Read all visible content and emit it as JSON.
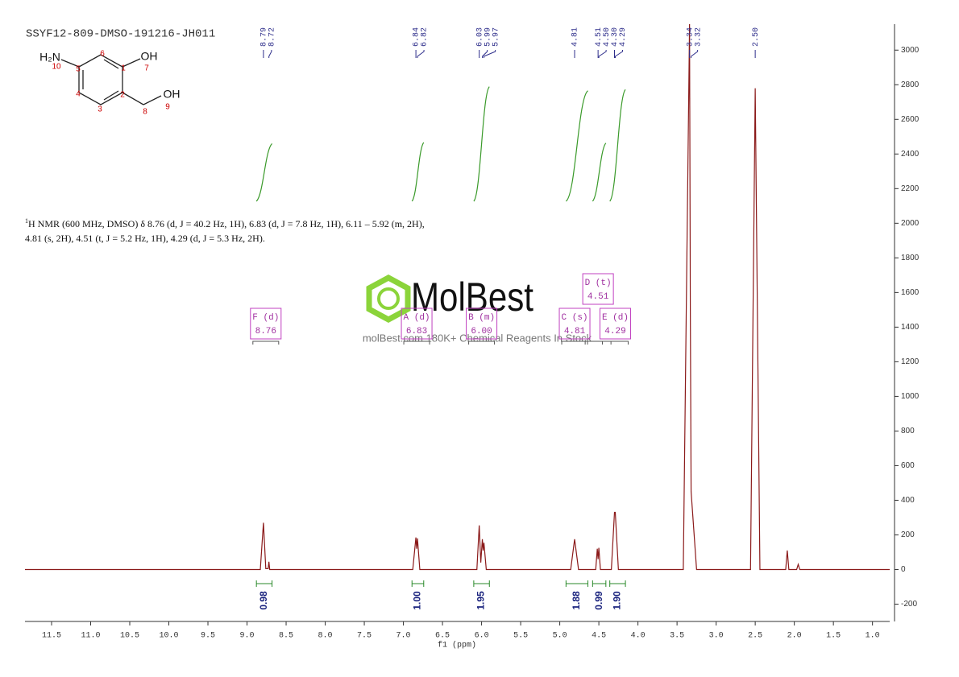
{
  "chart_data": {
    "type": "line",
    "title": "SSYF12-809-DMSO-191216-JH011",
    "xlabel": "f1 (ppm)",
    "x": [
      11.84,
      8.83,
      8.79,
      8.76,
      8.73,
      8.72,
      8.71,
      6.88,
      6.84,
      6.83,
      6.82,
      6.79,
      6.06,
      6.03,
      6.01,
      5.99,
      5.98,
      5.97,
      5.94,
      4.86,
      4.81,
      4.76,
      4.54,
      4.52,
      4.51,
      4.5,
      4.48,
      4.34,
      4.3,
      4.29,
      4.25,
      3.42,
      3.34,
      3.33,
      3.32,
      3.25,
      2.56,
      2.5,
      2.44,
      2.11,
      2.09,
      2.07,
      1.97,
      1.95,
      1.93,
      0.78
    ],
    "values": [
      0,
      0,
      270,
      5,
      5,
      45,
      0,
      0,
      185,
      120,
      180,
      0,
      0,
      255,
      40,
      175,
      110,
      155,
      0,
      0,
      175,
      0,
      0,
      120,
      60,
      125,
      0,
      0,
      330,
      330,
      0,
      0,
      3150,
      1500,
      450,
      0,
      0,
      2780,
      0,
      0,
      110,
      0,
      0,
      30,
      0,
      0
    ],
    "color": "#8b1a1a",
    "xlim": [
      11.84,
      0.78
    ],
    "xticks": [
      11.5,
      {
        "value": 11,
        "label": "11.0"
      },
      10.5,
      {
        "value": 10,
        "label": "10.0"
      },
      9.5,
      {
        "value": 9,
        "label": "9.0"
      },
      8.5,
      {
        "value": 8,
        "label": "8.0"
      },
      7.5,
      {
        "value": 7,
        "label": "7.0"
      },
      6.5,
      {
        "value": 6,
        "label": "6.0"
      },
      5.5,
      {
        "value": 5,
        "label": "5.0"
      },
      4.5,
      {
        "value": 4,
        "label": "4.0"
      },
      3.5,
      {
        "value": 3,
        "label": "3.0"
      },
      2.5,
      {
        "value": 2,
        "label": "2.0"
      },
      1.5,
      {
        "value": 1,
        "label": "1.0"
      }
    ],
    "ylim": [
      -300,
      3150
    ],
    "yticks": [
      -200,
      0,
      200,
      400,
      600,
      800,
      1000,
      1200,
      1400,
      1600,
      1800,
      2000,
      2200,
      2400,
      2600,
      2800,
      3000
    ],
    "peak_labels": {
      "values": [
        8.79,
        8.72,
        6.84,
        6.82,
        6.03,
        5.99,
        5.97,
        4.81,
        4.51,
        4.5,
        4.3,
        4.29,
        3.34,
        3.32,
        2.5
      ],
      "value_labels": [
        "8.79",
        "8.72",
        "6.84",
        "6.82",
        "6.03",
        "5.99",
        "5.97",
        "4.81",
        "4.51",
        "4.50",
        "4.30",
        "4.29",
        "3.34",
        "3.32",
        "2.50"
      ]
    },
    "multiplets": {
      "names": [
        "F (d)",
        "A (d)",
        "B (m)",
        "C (s)",
        "D (t)",
        "E (d)"
      ],
      "shifts": [
        8.76,
        6.83,
        6,
        4.81,
        4.51,
        4.29
      ],
      "shift_labels": [
        "8.76",
        "6.83",
        "6.00",
        "4.81",
        "4.51",
        "4.29"
      ]
    },
    "integrals": {
      "ranges": [
        [
          8.88,
          8.68
        ],
        [
          6.89,
          6.74
        ],
        [
          6.1,
          5.9
        ],
        [
          4.92,
          4.64
        ],
        [
          4.58,
          4.41
        ],
        [
          4.36,
          4.16
        ]
      ],
      "values": [
        0.98,
        1,
        1.95,
        1.88,
        0.99,
        1.9
      ],
      "value_labels": [
        "0.98",
        "1.00",
        "1.95",
        "1.88",
        "0.99",
        "1.90"
      ]
    },
    "description": {
      "superscript": "1",
      "lines": [
        "H NMR (600 MHz, DMSO) δ 8.76 (d, J = 40.2 Hz, 1H), 6.83 (d, J = 7.8 Hz, 1H), 6.11 – 5.92 (m, 2H),",
        "4.81 (s, 2H), 4.51 (t, J = 5.2 Hz, 1H), 4.29 (d, J = 5.3 Hz, 2H)."
      ]
    },
    "molecule": {
      "labels": [
        "H₂N",
        "10",
        "5",
        "6",
        "1",
        "OH",
        "7",
        "4",
        "3",
        "2",
        "8",
        "OH",
        "9"
      ]
    },
    "watermark": {
      "brand": "MolBest",
      "tagline": "molBest.com 180K+ Chemical Reagents In Stock"
    }
  }
}
